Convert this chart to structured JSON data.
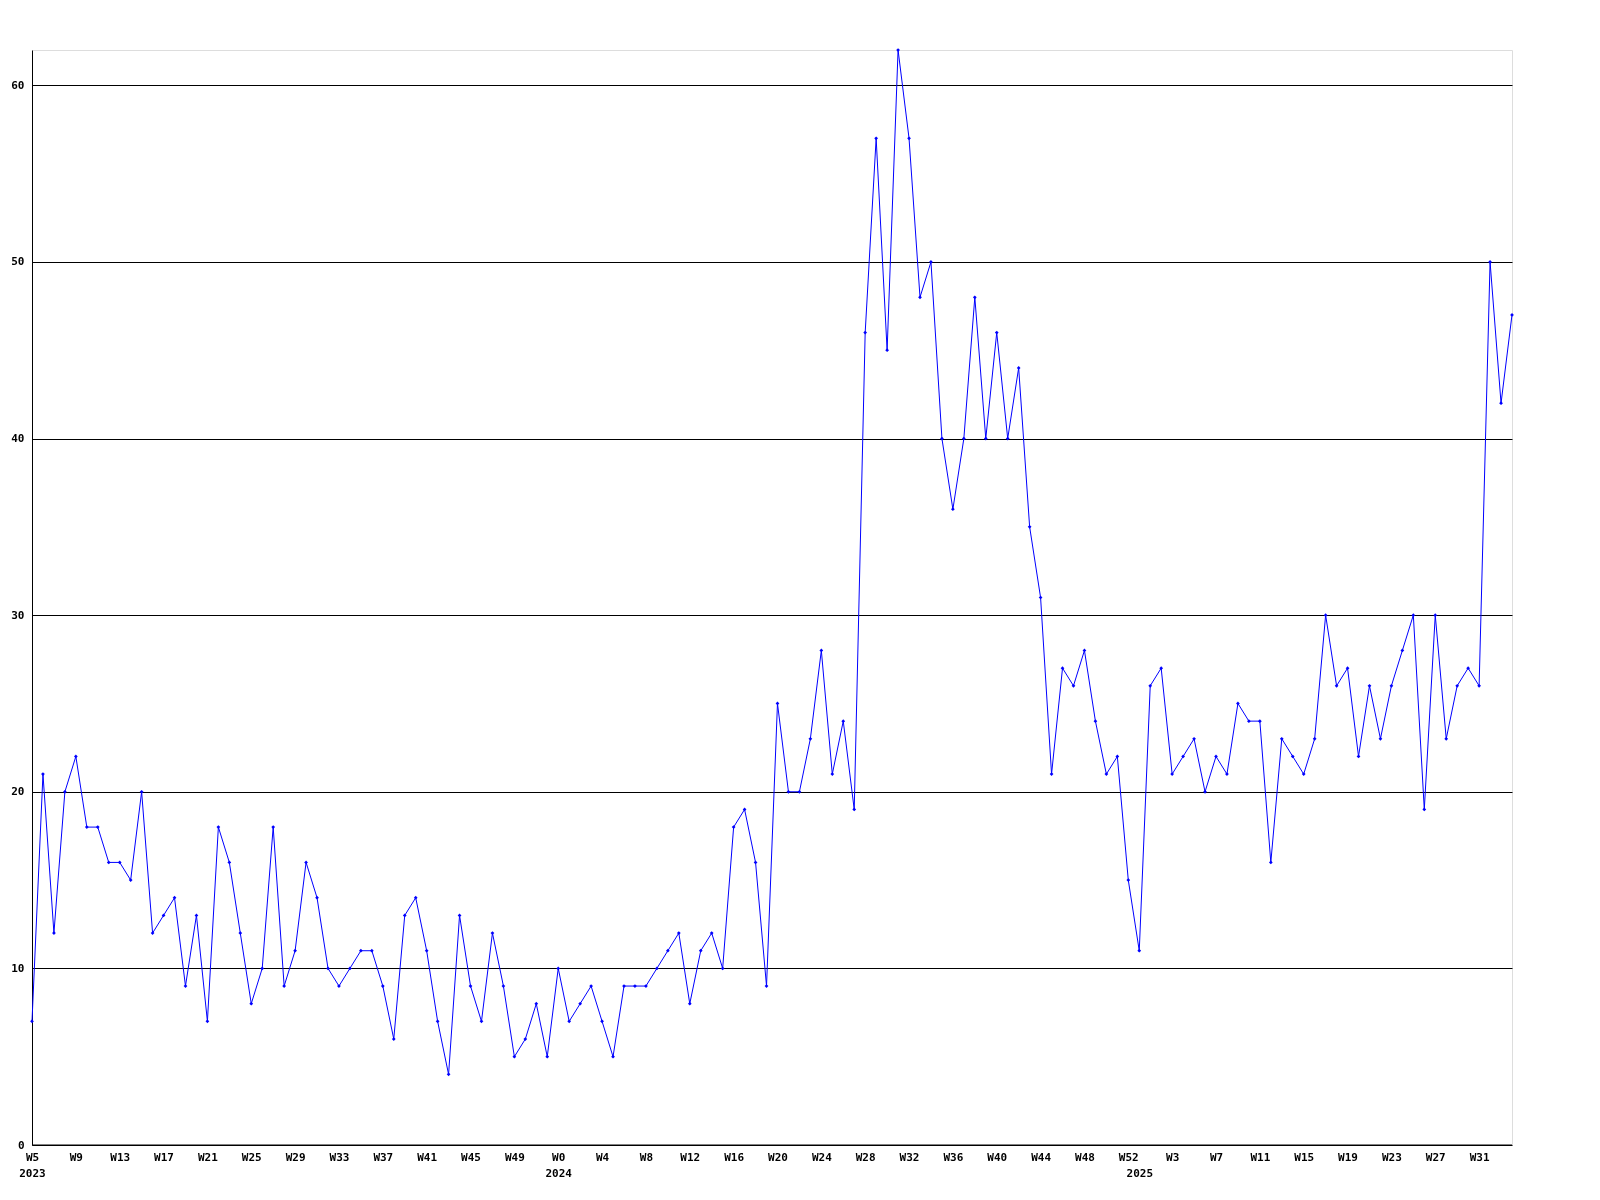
{
  "chart_data": {
    "type": "line",
    "categories": [
      "W5\n2023",
      null,
      null,
      null,
      "W9",
      null,
      null,
      null,
      "W13",
      null,
      null,
      null,
      "W17",
      null,
      null,
      null,
      "W21",
      null,
      null,
      null,
      "W25",
      null,
      null,
      null,
      "W29",
      null,
      null,
      null,
      "W33",
      null,
      null,
      null,
      "W37",
      null,
      null,
      null,
      "W41",
      null,
      null,
      null,
      "W45",
      null,
      null,
      null,
      "W49",
      null,
      null,
      null,
      "W0\n2024",
      null,
      null,
      null,
      "W4",
      null,
      null,
      null,
      "W8",
      null,
      null,
      null,
      "W12",
      null,
      null,
      null,
      "W16",
      null,
      null,
      null,
      "W20",
      null,
      null,
      null,
      "W24",
      null,
      null,
      null,
      "W28",
      null,
      null,
      null,
      "W32",
      null,
      null,
      null,
      "W36",
      null,
      null,
      null,
      "W40",
      null,
      null,
      null,
      "W44",
      null,
      null,
      null,
      "W48",
      null,
      null,
      null,
      "W52",
      "\n2025",
      null,
      null,
      "W3",
      null,
      null,
      null,
      "W7",
      null,
      null,
      null,
      "W11",
      null,
      null,
      null,
      "W15",
      null,
      null,
      null,
      "W19",
      null,
      null,
      null,
      "W23",
      null,
      null,
      null,
      "W27",
      null,
      null,
      null,
      "W31",
      null,
      null,
      null
    ],
    "series": [
      {
        "color": "#0000ff",
        "values": [
          7,
          21,
          12,
          20,
          22,
          18,
          18,
          16,
          16,
          15,
          20,
          12,
          13,
          14,
          9,
          13,
          7,
          18,
          16,
          12,
          8,
          10,
          18,
          9,
          11,
          16,
          14,
          10,
          9,
          10,
          11,
          11,
          9,
          6,
          13,
          14,
          11,
          7,
          4,
          13,
          9,
          7,
          12,
          9,
          5,
          6,
          8,
          5,
          10,
          7,
          8,
          9,
          7,
          5,
          9,
          9,
          9,
          10,
          11,
          12,
          8,
          11,
          12,
          10,
          18,
          19,
          16,
          9,
          25,
          20,
          20,
          23,
          28,
          21,
          24,
          19,
          46,
          57,
          45,
          62,
          57,
          48,
          50,
          40,
          36,
          40,
          48,
          40,
          46,
          40,
          44,
          35,
          31,
          21,
          27,
          26,
          28,
          24,
          21,
          22,
          15,
          11,
          26,
          27,
          21,
          22,
          23,
          20,
          22,
          21,
          25,
          24,
          24,
          16,
          23,
          22,
          21,
          23,
          30,
          26,
          27,
          22,
          26,
          23,
          26,
          28,
          30,
          19,
          30,
          23,
          26,
          27,
          26,
          50,
          42,
          47
        ]
      }
    ],
    "ylim": [
      0,
      62
    ],
    "yticks": [
      0,
      10,
      20,
      30,
      40,
      50,
      60
    ],
    "grid": "y",
    "marker": "diamond",
    "line_style": "solid"
  }
}
